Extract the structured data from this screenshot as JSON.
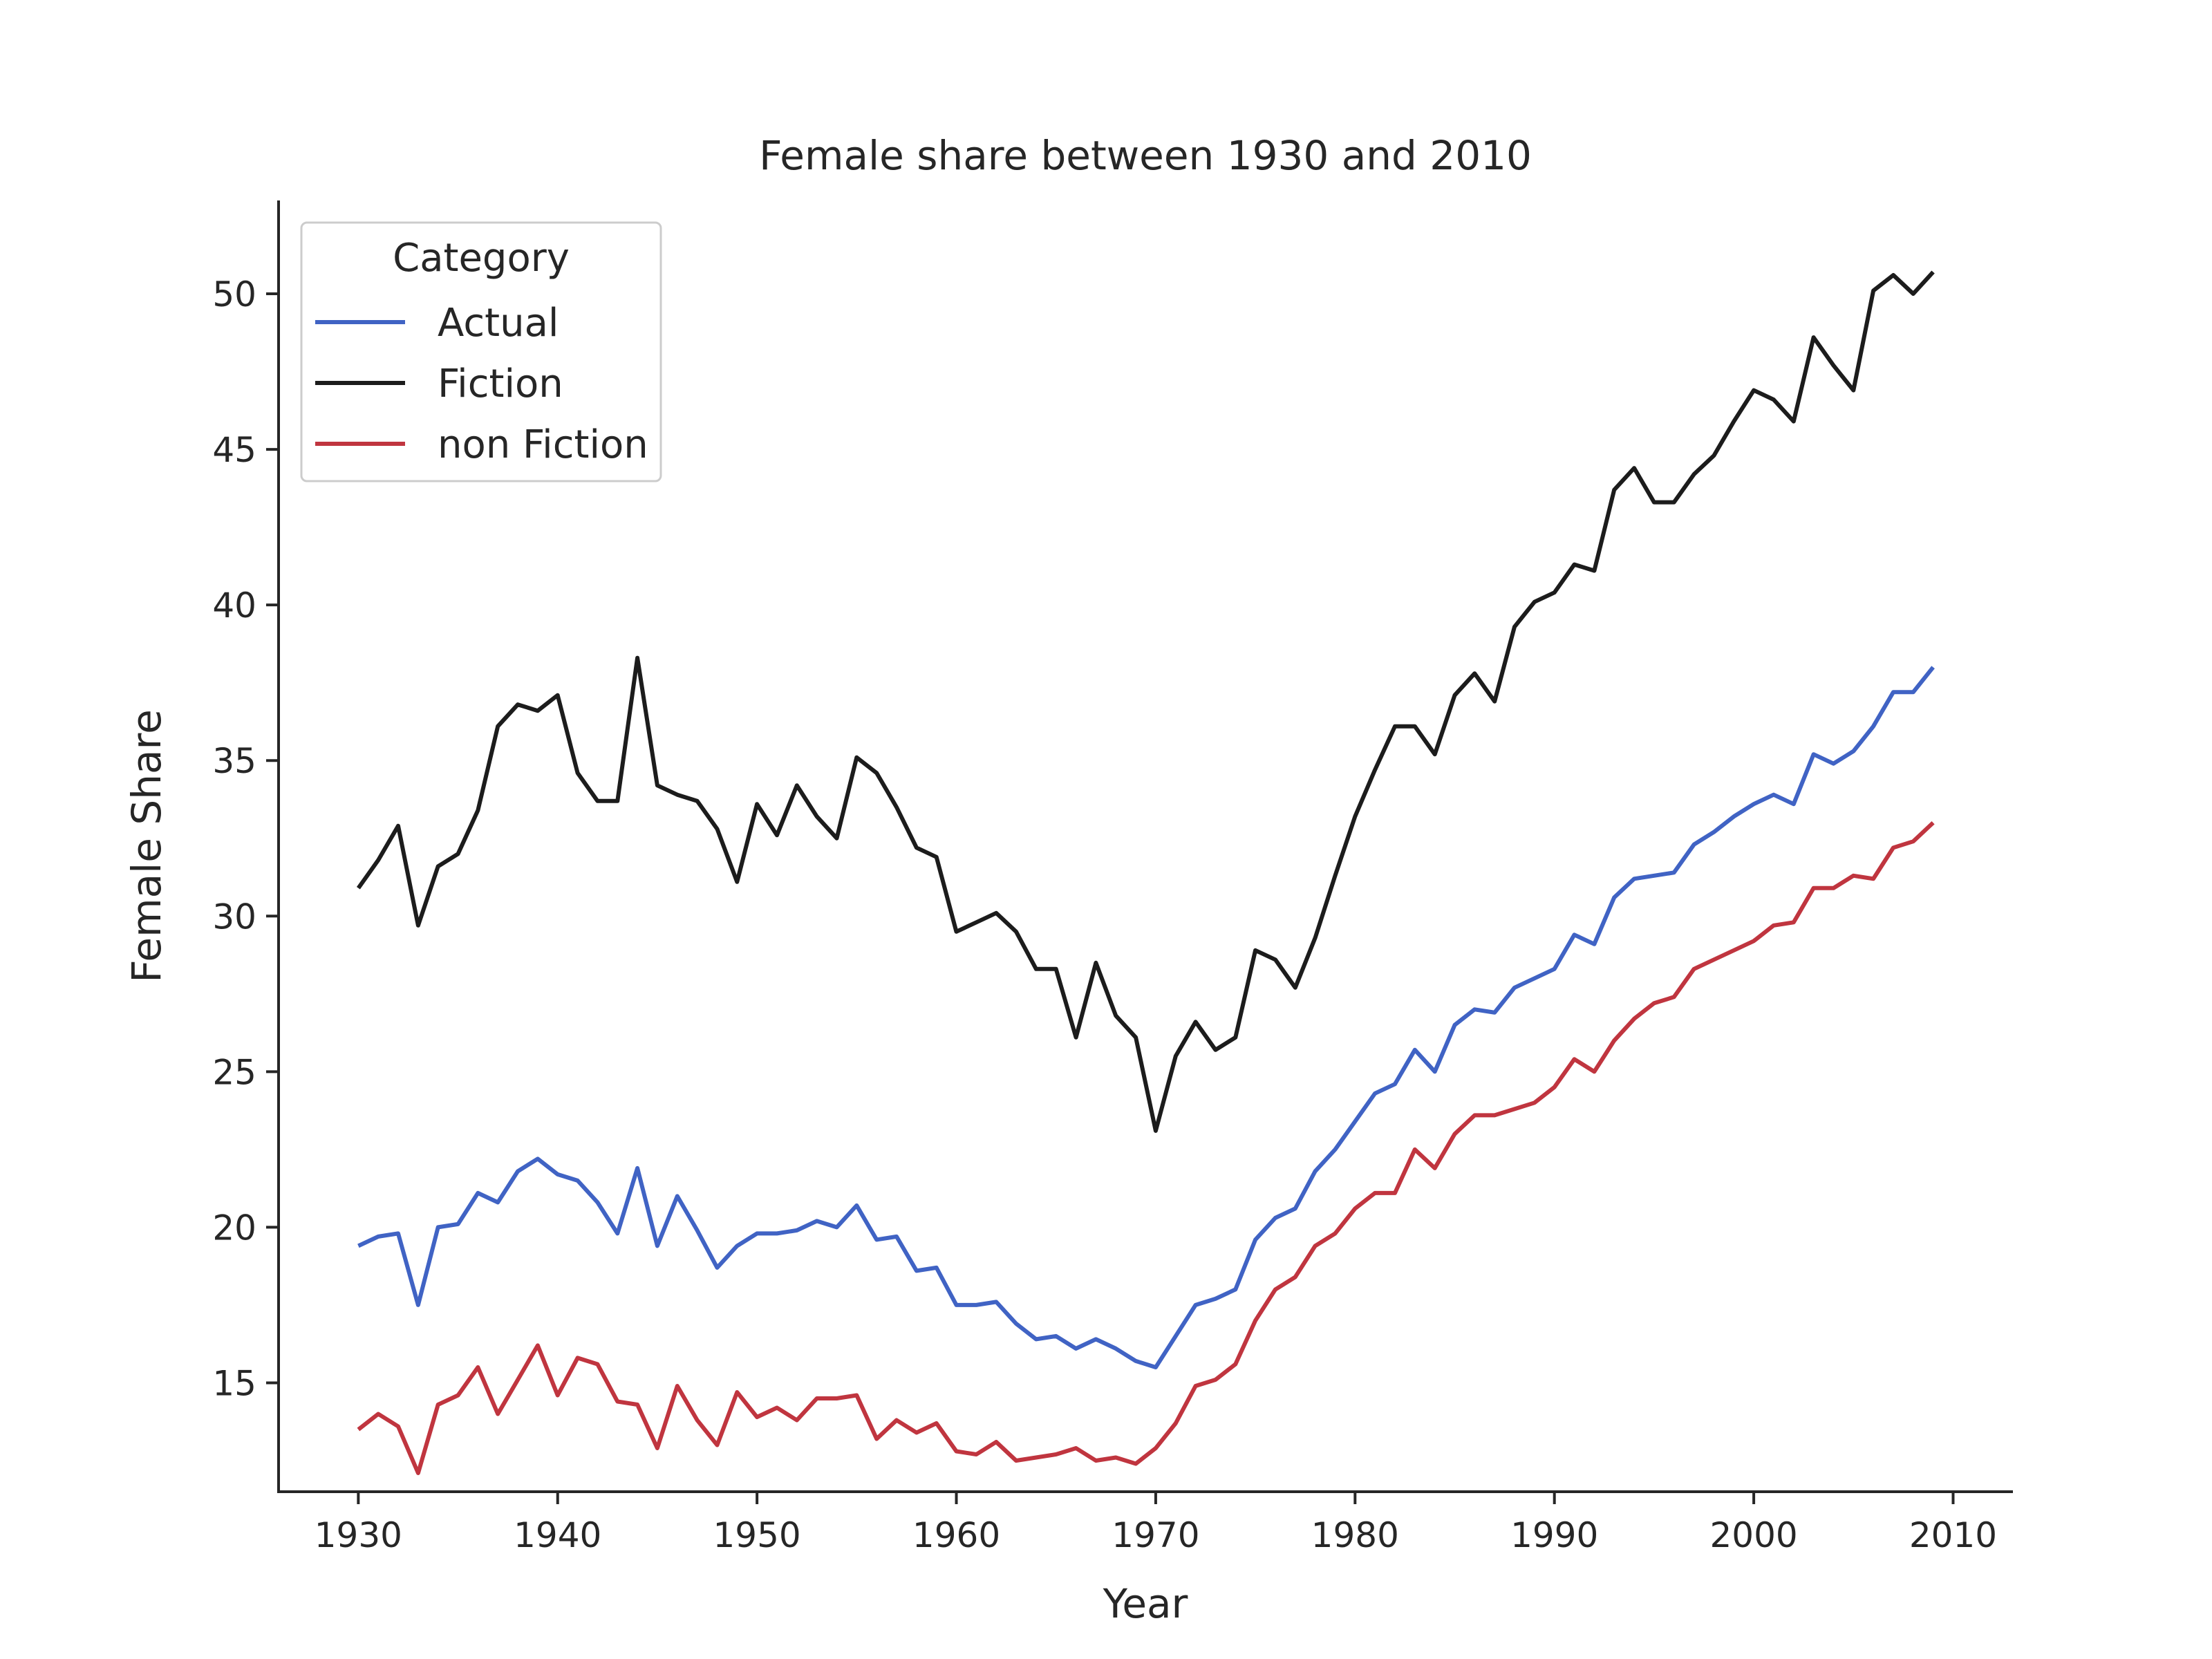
{
  "chart_data": {
    "type": "line",
    "title": "Female share between 1930 and 2010",
    "xlabel": "Year",
    "ylabel": "Female Share",
    "xlim": [
      1926,
      2013
    ],
    "ylim": [
      11.5,
      53
    ],
    "xticks": [
      1930,
      1940,
      1950,
      1960,
      1970,
      1980,
      1990,
      2000,
      2010
    ],
    "yticks": [
      15,
      20,
      25,
      30,
      35,
      40,
      45,
      50
    ],
    "grid": false,
    "legend": {
      "title": "Category",
      "position": "top-left"
    },
    "x": [
      1930,
      1931,
      1932,
      1933,
      1934,
      1935,
      1936,
      1937,
      1938,
      1939,
      1940,
      1941,
      1942,
      1943,
      1944,
      1945,
      1946,
      1947,
      1948,
      1949,
      1950,
      1951,
      1952,
      1953,
      1954,
      1955,
      1956,
      1957,
      1958,
      1959,
      1960,
      1961,
      1962,
      1963,
      1964,
      1965,
      1966,
      1967,
      1968,
      1969,
      1970,
      1971,
      1972,
      1973,
      1974,
      1975,
      1976,
      1977,
      1978,
      1979,
      1980,
      1981,
      1982,
      1983,
      1984,
      1985,
      1986,
      1987,
      1988,
      1989,
      1990,
      1991,
      1992,
      1993,
      1994,
      1995,
      1996,
      1997,
      1998,
      1999,
      2000,
      2001,
      2002,
      2003,
      2004,
      2005,
      2006,
      2007,
      2008,
      2009
    ],
    "series": [
      {
        "name": "Actual",
        "color": "#4063c4",
        "values": [
          19.4,
          19.7,
          19.8,
          17.5,
          20.0,
          20.1,
          21.1,
          20.8,
          21.8,
          22.2,
          21.7,
          21.5,
          20.8,
          19.8,
          21.9,
          19.4,
          21.0,
          19.9,
          18.7,
          19.4,
          19.8,
          19.8,
          19.9,
          20.2,
          20.0,
          20.7,
          19.6,
          19.7,
          18.6,
          18.7,
          17.5,
          17.5,
          17.6,
          16.9,
          16.4,
          16.5,
          16.1,
          16.4,
          16.1,
          15.7,
          15.5,
          16.5,
          17.5,
          17.7,
          18.0,
          19.6,
          20.3,
          20.6,
          21.8,
          22.5,
          23.4,
          24.3,
          24.6,
          25.7,
          25.0,
          26.5,
          27.0,
          26.9,
          27.7,
          28.0,
          28.3,
          29.4,
          29.1,
          30.6,
          31.2,
          31.3,
          31.4,
          32.3,
          32.7,
          33.2,
          33.6,
          33.9,
          33.6,
          35.2,
          34.9,
          35.3,
          36.1,
          37.2,
          37.2,
          38.0
        ]
      },
      {
        "name": "Fiction",
        "color": "#1c1c1c",
        "values": [
          30.9,
          31.8,
          32.9,
          29.7,
          31.6,
          32.0,
          33.4,
          36.1,
          36.8,
          36.6,
          37.1,
          34.6,
          33.7,
          33.7,
          38.3,
          34.2,
          33.9,
          33.7,
          32.8,
          31.1,
          33.6,
          32.6,
          34.2,
          33.2,
          32.5,
          35.1,
          34.6,
          33.5,
          32.2,
          31.9,
          29.5,
          29.8,
          30.1,
          29.5,
          28.3,
          28.3,
          26.1,
          28.5,
          26.8,
          26.1,
          23.1,
          25.5,
          26.6,
          25.7,
          26.1,
          28.9,
          28.6,
          27.7,
          29.3,
          31.3,
          33.2,
          34.7,
          36.1,
          36.1,
          35.2,
          37.1,
          37.8,
          36.9,
          39.3,
          40.1,
          40.4,
          41.3,
          41.1,
          43.7,
          44.4,
          43.3,
          43.3,
          44.2,
          44.8,
          45.9,
          46.9,
          46.6,
          45.9,
          48.6,
          47.7,
          46.9,
          50.1,
          50.6,
          50.0,
          50.7
        ]
      },
      {
        "name": "non Fiction",
        "color": "#c0353f",
        "values": [
          13.5,
          14.0,
          13.6,
          12.1,
          14.3,
          14.6,
          15.5,
          14.0,
          15.1,
          16.2,
          14.6,
          15.8,
          15.6,
          14.4,
          14.3,
          12.9,
          14.9,
          13.8,
          13.0,
          14.7,
          13.9,
          14.2,
          13.8,
          14.5,
          14.5,
          14.6,
          13.2,
          13.8,
          13.4,
          13.7,
          12.8,
          12.7,
          13.1,
          12.5,
          12.6,
          12.7,
          12.9,
          12.5,
          12.6,
          12.4,
          12.9,
          13.7,
          14.9,
          15.1,
          15.6,
          17.0,
          18.0,
          18.4,
          19.4,
          19.8,
          20.6,
          21.1,
          21.1,
          22.5,
          21.9,
          23.0,
          23.6,
          23.6,
          23.8,
          24.0,
          24.5,
          25.4,
          25.0,
          26.0,
          26.7,
          27.2,
          27.4,
          28.3,
          28.6,
          28.9,
          29.2,
          29.7,
          29.8,
          30.9,
          30.9,
          31.3,
          31.2,
          32.2,
          32.4,
          33.0
        ]
      }
    ]
  }
}
